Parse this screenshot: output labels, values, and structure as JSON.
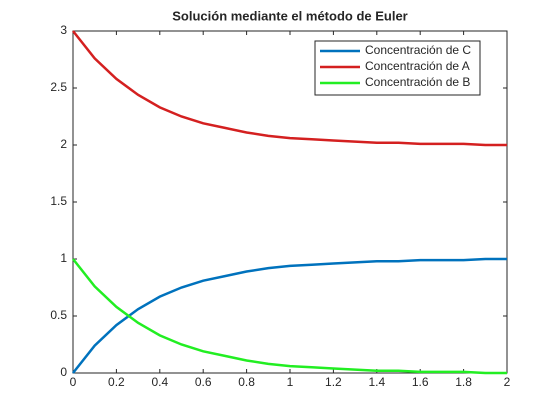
{
  "chart_data": {
    "type": "line",
    "title": "Solución mediante el método de Euler",
    "x": [
      0,
      0.1,
      0.2,
      0.3,
      0.4,
      0.5,
      0.6,
      0.7,
      0.8,
      0.9,
      1,
      1.1,
      1.2,
      1.3,
      1.4,
      1.5,
      1.6,
      1.7,
      1.8,
      1.9,
      2
    ],
    "series": [
      {
        "name": "Concentración de C",
        "color": "#0072bd",
        "values": [
          0,
          0.24,
          0.42,
          0.56,
          0.67,
          0.75,
          0.81,
          0.85,
          0.89,
          0.92,
          0.94,
          0.95,
          0.96,
          0.97,
          0.98,
          0.98,
          0.99,
          0.99,
          0.99,
          1.0,
          1.0
        ]
      },
      {
        "name": "Concentración de A",
        "color": "#d42020",
        "values": [
          3,
          2.76,
          2.58,
          2.44,
          2.33,
          2.25,
          2.19,
          2.15,
          2.11,
          2.08,
          2.06,
          2.05,
          2.04,
          2.03,
          2.02,
          2.02,
          2.01,
          2.01,
          2.01,
          2.0,
          2.0
        ]
      },
      {
        "name": "Concentración de B",
        "color": "#22ee22",
        "values": [
          1,
          0.76,
          0.58,
          0.44,
          0.33,
          0.25,
          0.19,
          0.15,
          0.11,
          0.08,
          0.06,
          0.05,
          0.04,
          0.03,
          0.02,
          0.02,
          0.01,
          0.01,
          0.01,
          0.0,
          0.0
        ]
      }
    ],
    "xlim": [
      0,
      2
    ],
    "xticks": [
      0,
      0.2,
      0.4,
      0.6,
      0.8,
      1,
      1.2,
      1.4,
      1.6,
      1.8,
      2
    ],
    "ylim": [
      0,
      3
    ],
    "yticks": [
      0,
      0.5,
      1,
      1.5,
      2,
      2.5,
      3
    ],
    "grid": false,
    "legend": "northeast"
  }
}
